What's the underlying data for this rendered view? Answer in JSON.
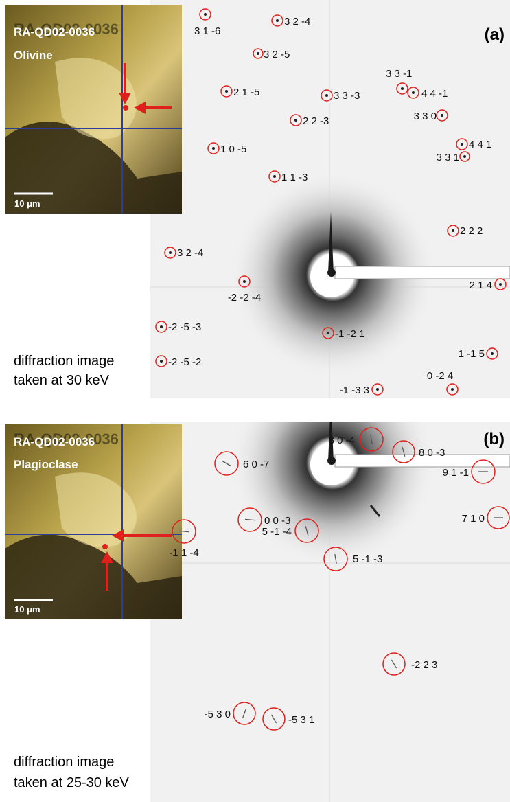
{
  "panels": [
    {
      "id": "a",
      "letter": "(a)",
      "sample_id": "RA-QD02-0036",
      "mineral": "Olivine",
      "scale_bar": "10 μm",
      "caption_line1": "diffraction image",
      "caption_line2": "taken at 30 keV",
      "reflections": [
        "3 1 -6",
        "3 2 -4",
        "3 2 -5",
        "2 1 -5",
        "3 3 -3",
        "3 3 -1",
        "4 4 -1",
        "2 2 -3",
        "3 3 0",
        "1 0 -5",
        "4 4 1",
        "3 3 1",
        "1 1 -3",
        "2 2 2",
        "3 2 -4",
        "-2 -2 -4",
        "2 1 4",
        "-2 -5 -3",
        "-1 -2 1",
        "1 -1 5",
        "-2 -5 -2",
        "0 -2 4",
        "-1 -3 3"
      ]
    },
    {
      "id": "b",
      "letter": "(b)",
      "sample_id": "RA-QD02-0036",
      "mineral": "Plagioclase",
      "scale_bar": "10 μm",
      "caption_line1": "diffraction image",
      "caption_line2": "taken at 25-30 keV",
      "reflections": [
        "8 0 -4",
        "6 0 -7",
        "8 0 -3",
        "9 1 -1",
        "7 1 0",
        "5 -1 -4",
        "5 -1 -3",
        "0 0 -3",
        "-1 1 -4",
        "-2 2 3",
        "-5 3 0",
        "-5 3 1"
      ]
    }
  ],
  "colors": {
    "annotation": "#e0201c",
    "crosshair": "#2a3f9a",
    "detector_bg": "#f1f1f1"
  }
}
